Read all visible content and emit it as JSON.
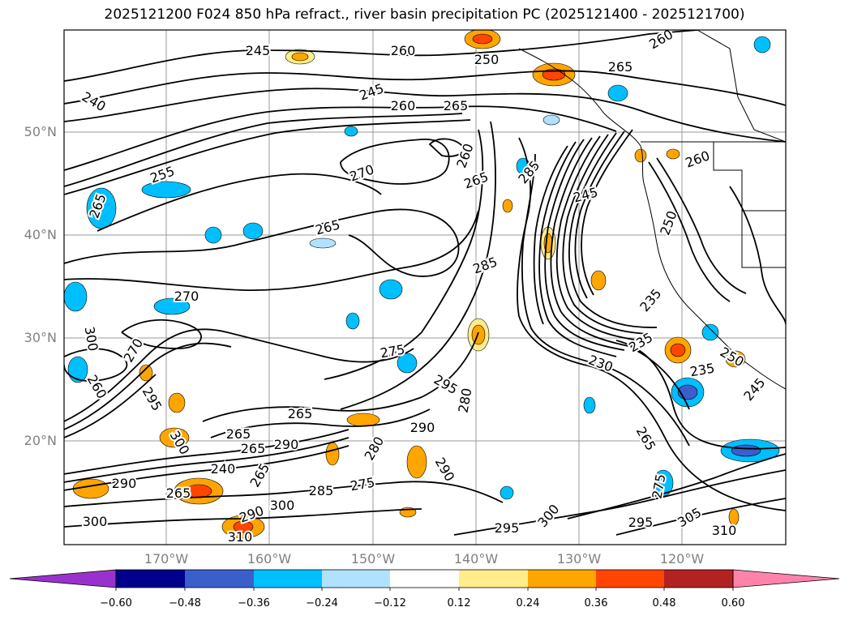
{
  "title": "2025121200 F024 850 hPa refract., river basin precipitation PC (2025121400 - 2025121700)",
  "map": {
    "lat_labels": [
      "50°N",
      "40°N",
      "30°N",
      "20°N"
    ],
    "lon_labels": [
      "170°W",
      "160°W",
      "150°W",
      "140°W",
      "130°W",
      "120°W"
    ],
    "contour_levels": [
      "235",
      "245",
      "250",
      "255",
      "260",
      "265",
      "270",
      "275",
      "280",
      "285",
      "290",
      "295",
      "300",
      "305",
      "310"
    ],
    "contour_labels": [
      {
        "t": "245"
      },
      {
        "t": "260"
      },
      {
        "t": "250"
      },
      {
        "t": "265"
      },
      {
        "t": "260"
      },
      {
        "t": "240"
      },
      {
        "t": "245"
      },
      {
        "t": "260"
      },
      {
        "t": "265"
      },
      {
        "t": "255"
      },
      {
        "t": "270"
      },
      {
        "t": "260"
      },
      {
        "t": "265"
      },
      {
        "t": "285"
      },
      {
        "t": "245"
      },
      {
        "t": "260"
      },
      {
        "t": "250"
      },
      {
        "t": "265"
      },
      {
        "t": "285"
      },
      {
        "t": "270"
      },
      {
        "t": "235"
      },
      {
        "t": "235"
      },
      {
        "t": "230"
      },
      {
        "t": "250"
      },
      {
        "t": "235"
      },
      {
        "t": "245"
      },
      {
        "t": "265"
      },
      {
        "t": "275"
      },
      {
        "t": "270"
      },
      {
        "t": "295"
      },
      {
        "t": "280"
      },
      {
        "t": "260"
      },
      {
        "t": "295"
      },
      {
        "t": "290"
      },
      {
        "t": "265"
      },
      {
        "t": "265"
      },
      {
        "t": "300"
      },
      {
        "t": "290"
      },
      {
        "t": "280"
      },
      {
        "t": "290"
      },
      {
        "t": "265"
      },
      {
        "t": "290"
      },
      {
        "t": "240"
      },
      {
        "t": "265"
      },
      {
        "t": "285"
      },
      {
        "t": "275"
      },
      {
        "t": "300"
      },
      {
        "t": "290"
      },
      {
        "t": "300"
      },
      {
        "t": "310"
      },
      {
        "t": "295"
      },
      {
        "t": "300"
      },
      {
        "t": "295"
      },
      {
        "t": "305"
      },
      {
        "t": "310"
      },
      {
        "t": "265"
      },
      {
        "t": "275"
      },
      {
        "t": "300"
      },
      {
        "t": "265"
      }
    ]
  },
  "colorbar": {
    "labels": [
      "−0.60",
      "−0.48",
      "−0.36",
      "−0.24",
      "−0.12",
      "0.12",
      "0.24",
      "0.36",
      "0.48",
      "0.60"
    ],
    "colors": [
      "#9932cc",
      "#00008b",
      "#3a5fcd",
      "#00bfff",
      "#b0e2ff",
      "#ffffff",
      "#ffec8b",
      "#ffa500",
      "#ff4500",
      "#b22222",
      "#ff82ab"
    ]
  }
}
